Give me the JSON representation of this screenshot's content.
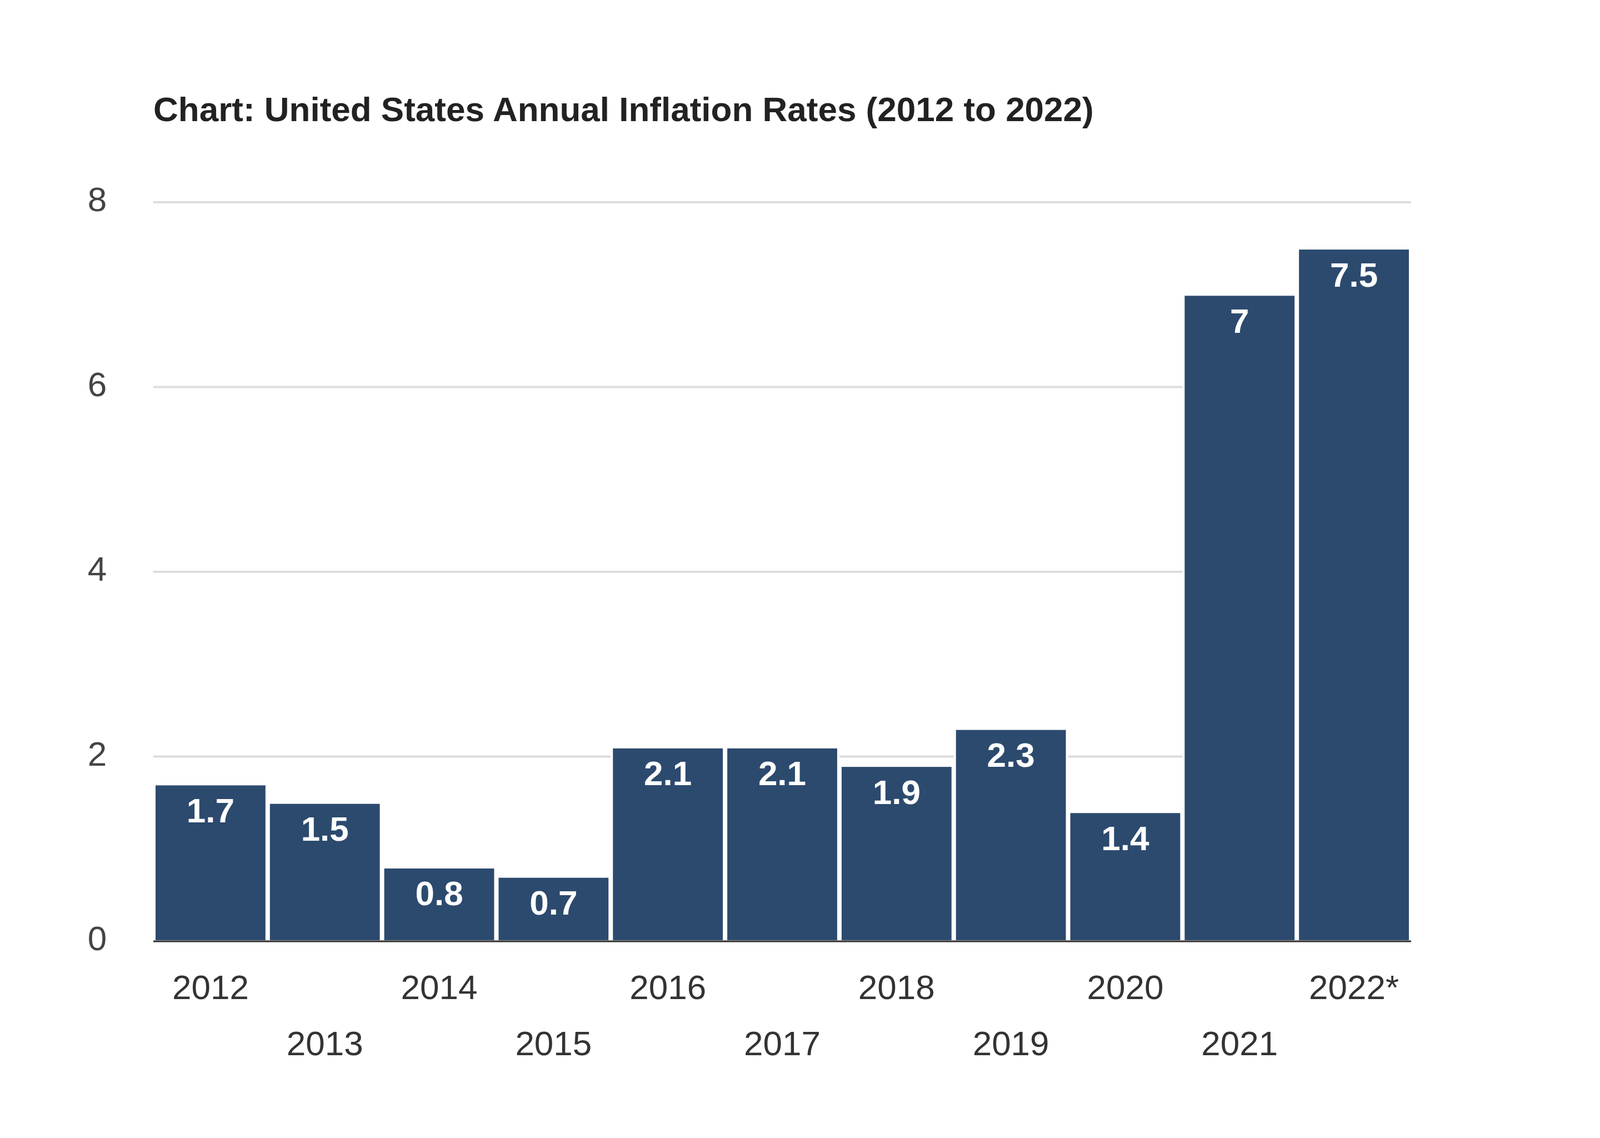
{
  "chart_data": {
    "type": "bar",
    "title": "Chart: United States Annual Inflation Rates (2012 to 2022)",
    "categories": [
      "2012",
      "2013",
      "2014",
      "2015",
      "2016",
      "2017",
      "2018",
      "2019",
      "2020",
      "2021",
      "2022*"
    ],
    "values": [
      1.7,
      1.5,
      0.8,
      0.7,
      2.1,
      2.1,
      1.9,
      2.3,
      1.4,
      7,
      7.5
    ],
    "color": "#2c4a6e",
    "ylim": [
      0,
      8
    ],
    "yticks": [
      0,
      2,
      4,
      6,
      8
    ],
    "grid": true,
    "data_labels": true
  }
}
